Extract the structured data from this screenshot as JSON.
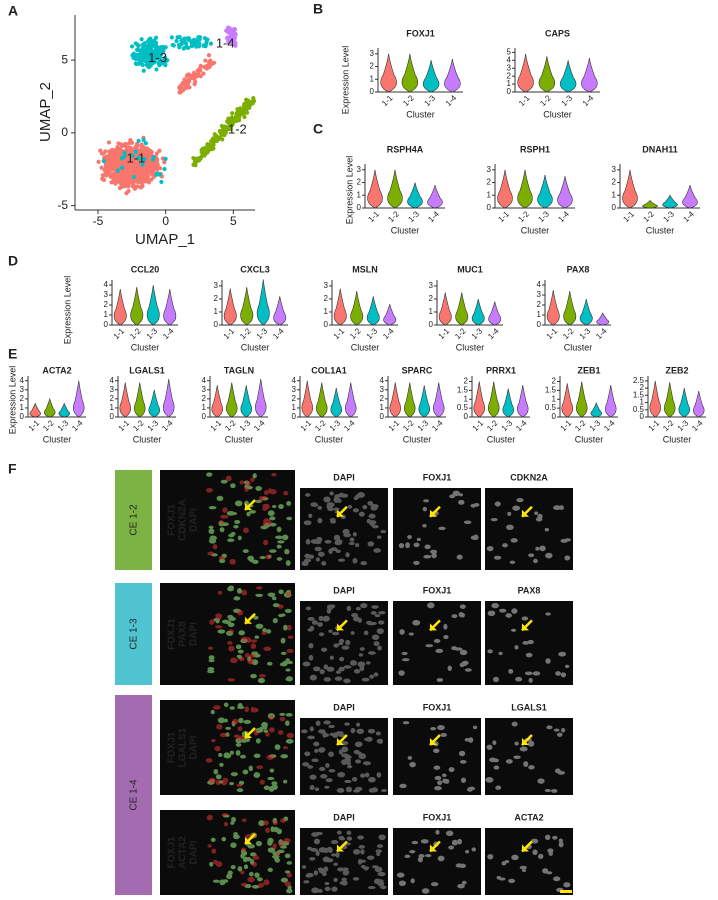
{
  "panel_a": {
    "label": "A",
    "type": "scatter",
    "x_label": "UMAP_1",
    "y_label": "UMAP_2",
    "xlim": [
      -6.7,
      6.6
    ],
    "ylim": [
      -5.3,
      8.1
    ],
    "xticks": [
      -5,
      0,
      5
    ],
    "yticks": [
      -5,
      0,
      5
    ],
    "clusters": [
      {
        "name": "1-1",
        "color": "#f8766d"
      },
      {
        "name": "1-2",
        "color": "#7cae00"
      },
      {
        "name": "1-3",
        "color": "#00bfc4"
      },
      {
        "name": "1-4",
        "color": "#c77cff"
      }
    ]
  },
  "violin_panels": [
    {
      "label": "B",
      "type": "violin",
      "y_label": "Expression Level",
      "x_label": "Cluster",
      "categories": [
        "1-1",
        "1-2",
        "1-3",
        "1-4"
      ],
      "colors": [
        "#f8766d",
        "#7cae00",
        "#00bfc4",
        "#c77cff"
      ],
      "genes": [
        {
          "name": "FOXJ1",
          "ylim": [
            0,
            3.3
          ],
          "yticks": [
            0,
            1,
            2,
            3
          ],
          "values": [
            3,
            3,
            2.5,
            2.6
          ]
        },
        {
          "name": "CAPS",
          "ylim": [
            0,
            5.3
          ],
          "yticks": [
            0,
            1,
            2,
            3,
            4,
            5
          ],
          "values": [
            4.8,
            4.5,
            4,
            4.3
          ]
        }
      ]
    },
    {
      "label": "C",
      "type": "violin",
      "y_label": "Expression Level",
      "x_label": "Cluster",
      "categories": [
        "1-1",
        "1-2",
        "1-3",
        "1-4"
      ],
      "colors": [
        "#f8766d",
        "#7cae00",
        "#00bfc4",
        "#c77cff"
      ],
      "genes": [
        {
          "name": "RSPH4A",
          "ylim": [
            0,
            3.3
          ],
          "yticks": [
            0,
            1,
            2,
            3
          ],
          "values": [
            3,
            3,
            2,
            1.8
          ]
        },
        {
          "name": "RSPH1",
          "ylim": [
            0,
            3.3
          ],
          "yticks": [
            0,
            1,
            2,
            3
          ],
          "values": [
            3,
            3,
            2.6,
            2.5
          ]
        },
        {
          "name": "DNAH11",
          "ylim": [
            0,
            3.3
          ],
          "yticks": [
            0,
            1,
            2,
            3
          ],
          "values": [
            3,
            0.6,
            1,
            1.8
          ]
        }
      ]
    },
    {
      "label": "D",
      "type": "violin",
      "y_label": "Expression Level",
      "x_label": "Cluster",
      "categories": [
        "1-1",
        "1-2",
        "1-3",
        "1-4"
      ],
      "colors": [
        "#f8766d",
        "#7cae00",
        "#00bfc4",
        "#c77cff"
      ],
      "genes": [
        {
          "name": "CCL20",
          "ylim": [
            0,
            4.3
          ],
          "yticks": [
            0,
            1,
            2,
            3,
            4
          ],
          "values": [
            3.6,
            3.8,
            4,
            3.6
          ]
        },
        {
          "name": "CXCL3",
          "ylim": [
            0,
            3.3
          ],
          "yticks": [
            0,
            1,
            2,
            3
          ],
          "values": [
            2.8,
            2.9,
            3.5,
            2.2
          ]
        },
        {
          "name": "MSLN",
          "ylim": [
            0,
            3.3
          ],
          "yticks": [
            0,
            1,
            2,
            3
          ],
          "values": [
            2.8,
            2.6,
            2.2,
            1.6
          ]
        },
        {
          "name": "MUC1",
          "ylim": [
            0,
            3.3
          ],
          "yticks": [
            0,
            1,
            2,
            3
          ],
          "values": [
            2.5,
            2.5,
            2,
            1.8
          ]
        },
        {
          "name": "PAX8",
          "ylim": [
            0,
            4.3
          ],
          "yticks": [
            0,
            1,
            2,
            3,
            4
          ],
          "values": [
            3.5,
            3.4,
            2.6,
            1.2
          ]
        }
      ]
    },
    {
      "label": "E",
      "type": "violin",
      "y_label": "Expression Level",
      "x_label": "Cluster",
      "categories": [
        "1-1",
        "1-2",
        "1-3",
        "1-4"
      ],
      "colors": [
        "#f8766d",
        "#7cae00",
        "#00bfc4",
        "#c77cff"
      ],
      "genes": [
        {
          "name": "ACTA2",
          "ylim": [
            0,
            4.3
          ],
          "yticks": [
            0,
            1,
            2,
            3,
            4
          ],
          "values": [
            1.5,
            2,
            1.5,
            4
          ]
        },
        {
          "name": "LGALS1",
          "ylim": [
            0,
            4.3
          ],
          "yticks": [
            0,
            1,
            2,
            3,
            4
          ],
          "values": [
            3.8,
            3.8,
            3,
            4.2
          ]
        },
        {
          "name": "TAGLN",
          "ylim": [
            0,
            4.3
          ],
          "yticks": [
            0,
            1,
            2,
            3,
            4
          ],
          "values": [
            3.5,
            3.8,
            3.5,
            4.2
          ]
        },
        {
          "name": "COL1A1",
          "ylim": [
            0,
            4.3
          ],
          "yticks": [
            0,
            1,
            2,
            3,
            4
          ],
          "values": [
            4,
            3.8,
            3.2,
            3.8
          ]
        },
        {
          "name": "SPARC",
          "ylim": [
            0,
            4.3
          ],
          "yticks": [
            0,
            1,
            2,
            3,
            4
          ],
          "values": [
            3.8,
            3.8,
            3.5,
            3.8
          ]
        },
        {
          "name": "PRRX1",
          "ylim": [
            0,
            2.2
          ],
          "yticks": [
            0,
            0.5,
            1,
            1.5,
            2
          ],
          "values": [
            2,
            2,
            1.6,
            1.8
          ]
        },
        {
          "name": "ZEB1",
          "ylim": [
            0,
            2.2
          ],
          "yticks": [
            0,
            0.5,
            1,
            1.5,
            2
          ],
          "values": [
            1.9,
            2,
            0.8,
            1.8
          ]
        },
        {
          "name": "ZEB2",
          "ylim": [
            0,
            2.7
          ],
          "yticks": [
            0,
            0.5,
            1,
            1.5,
            2,
            2.5
          ],
          "values": [
            2.5,
            2.4,
            2,
            1.8
          ]
        }
      ]
    }
  ],
  "panel_f": {
    "label": "F",
    "merge_colors": [
      "#39d353",
      "#ff3030",
      "#ffffff"
    ],
    "groups": [
      {
        "name": "CE 1-2",
        "color": "#7cb342",
        "rows": [
          {
            "merge": [
              "FOXJ1",
              "CDKN2A",
              "DAPI"
            ],
            "channels": [
              "DAPI",
              "FOXJ1",
              "CDKN2A"
            ]
          }
        ]
      },
      {
        "name": "CE 1-3",
        "color": "#4fc3d0",
        "rows": [
          {
            "merge": [
              "FOXJ1",
              "PAX8",
              "DAPI"
            ],
            "channels": [
              "DAPI",
              "FOXJ1",
              "PAX8"
            ]
          }
        ]
      },
      {
        "name": "CE 1-4",
        "color": "#a46bb0",
        "rows": [
          {
            "merge": [
              "FOXJ1",
              "LGALS1",
              "DAPI"
            ],
            "channels": [
              "DAPI",
              "FOXJ1",
              "LGALS1"
            ]
          },
          {
            "merge": [
              "FOXJ1",
              "ACTA2",
              "DAPI"
            ],
            "channels": [
              "DAPI",
              "FOXJ1",
              "ACTA2"
            ]
          }
        ]
      }
    ]
  }
}
